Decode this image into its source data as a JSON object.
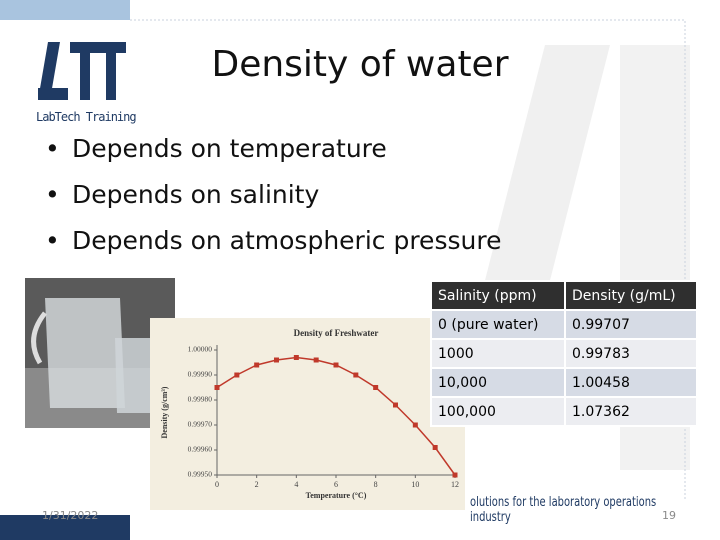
{
  "title": "Density of water",
  "logo": {
    "name": "LabTech Training"
  },
  "bullets": [
    "Depends on temperature",
    "Depends on salinity",
    "Depends on atmospheric pressure"
  ],
  "table": {
    "header": [
      "Salinity (ppm)",
      "Density (g/mL)"
    ],
    "rows": [
      [
        "0 (pure water)",
        "0.99707"
      ],
      [
        "1000",
        "0.99783"
      ],
      [
        "10,000",
        "1.00458"
      ],
      [
        "100,000",
        "1.07362"
      ]
    ]
  },
  "figure": {
    "type": "line",
    "title": "Density of Freshwater",
    "x_label": "Temperature (°C)",
    "y_label": "Density (g/cm³)",
    "x": [
      0,
      1,
      2,
      3,
      4,
      5,
      6,
      7,
      8,
      9,
      10,
      11,
      12
    ],
    "values": [
      0.99985,
      0.9999,
      0.99994,
      0.99996,
      0.99997,
      0.99996,
      0.99994,
      0.9999,
      0.99985,
      0.99978,
      0.9997,
      0.99961,
      0.9995
    ],
    "color": "#c0392b",
    "xlim": [
      0,
      12
    ],
    "xticks": [
      0,
      2,
      4,
      6,
      8,
      10,
      12
    ],
    "ylim": [
      0.9995,
      1
    ],
    "yticks": [
      {
        "value": 1,
        "label": "1.00000"
      },
      {
        "value": 0.9999,
        "label": "0.99990"
      },
      {
        "value": 0.9998,
        "label": "0.99980"
      },
      {
        "value": 0.9997,
        "label": "0.99970"
      },
      {
        "value": 0.9996,
        "label": "0.99960"
      },
      {
        "value": 0.9995,
        "label": "0.99950"
      }
    ]
  },
  "footer": {
    "tagline": "olutions for the laboratory operations industry",
    "date": "1/31/2022",
    "page": "19"
  }
}
